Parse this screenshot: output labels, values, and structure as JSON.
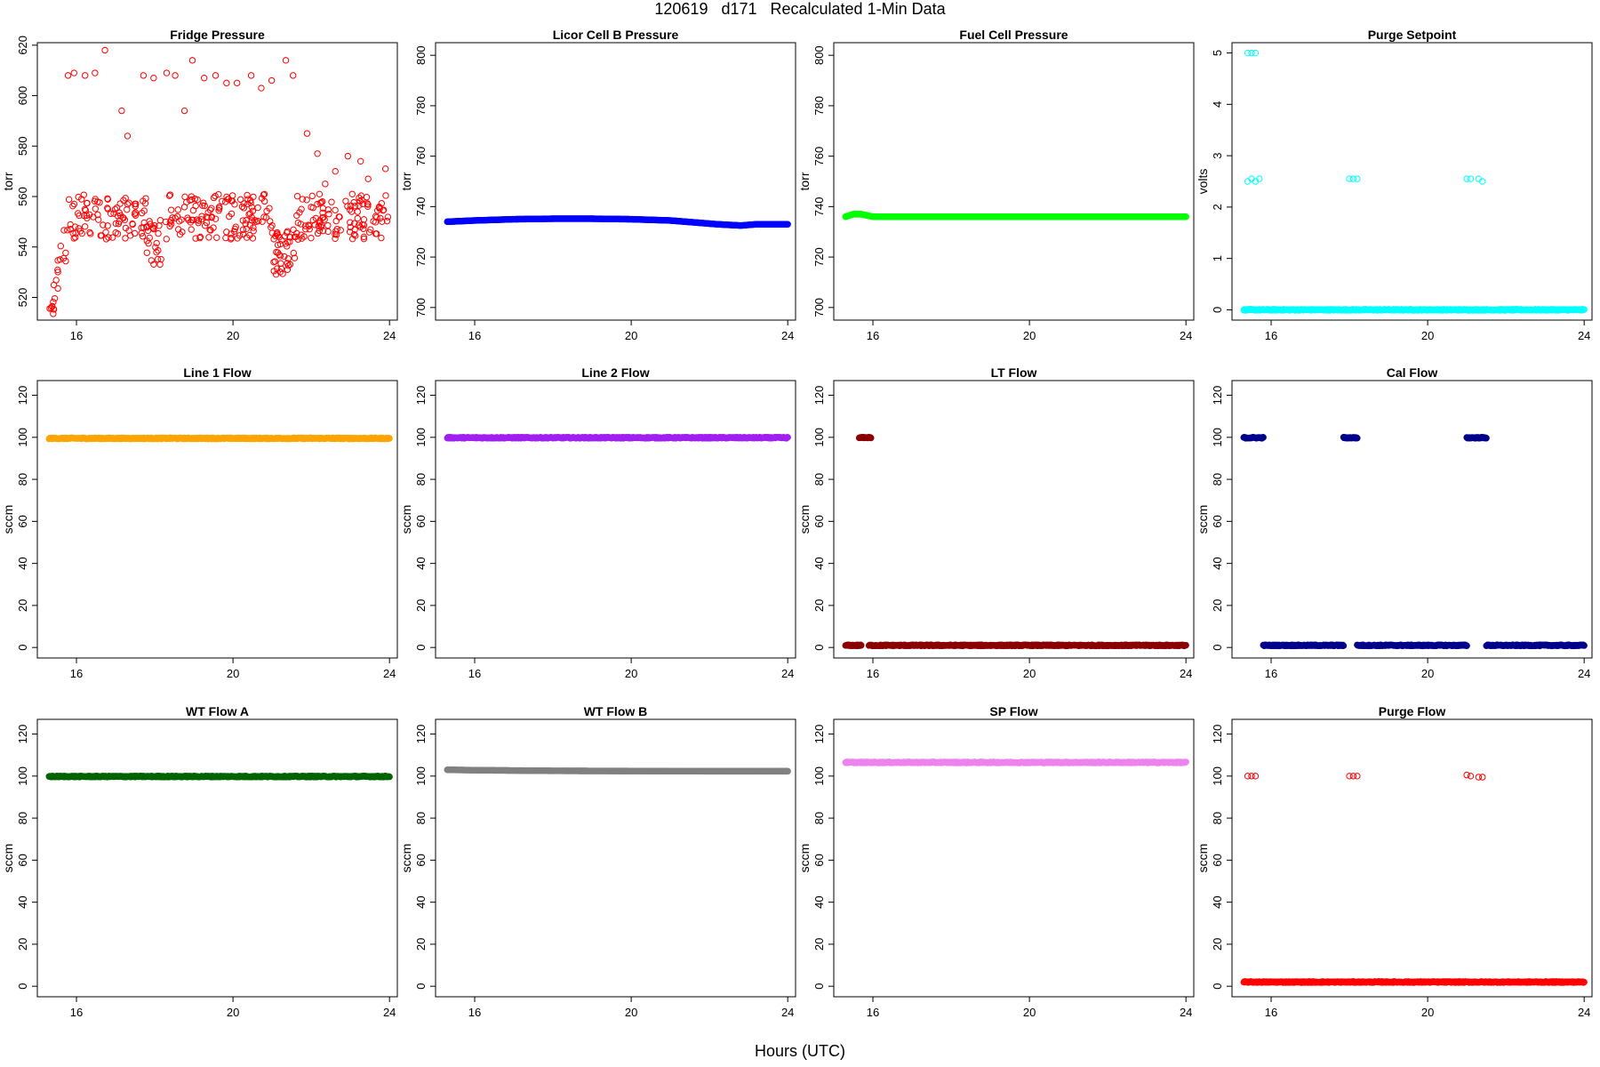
{
  "title": "120619   d171   Recalculated 1-Min Data",
  "xlabel": "Hours (UTC)",
  "chart_data": [
    {
      "type": "scatter",
      "title": "Fridge Pressure",
      "ylabel": "torr",
      "xlim": [
        15,
        24.2
      ],
      "ylim": [
        511,
        621
      ],
      "yticks": [
        520,
        540,
        560,
        580,
        600,
        620
      ],
      "xticks": [
        16,
        20,
        24
      ],
      "color": "#ff0000",
      "marker": "open",
      "series": [
        {
          "generator": "fridge",
          "x_range": [
            15.3,
            24
          ],
          "baseline": 552,
          "outlier_values": [
            608,
            609,
            608,
            609,
            618,
            594,
            584,
            608,
            607,
            609,
            608,
            594,
            614,
            607,
            608,
            605,
            605,
            608,
            603,
            606,
            614,
            608,
            585,
            577,
            565,
            570,
            576,
            574,
            567,
            571
          ]
        }
      ]
    },
    {
      "type": "scatter",
      "title": "Licor Cell B Pressure",
      "ylabel": "torr",
      "xlim": [
        15,
        24.2
      ],
      "ylim": [
        695,
        805
      ],
      "yticks": [
        700,
        720,
        740,
        760,
        780,
        800
      ],
      "xticks": [
        16,
        20,
        24
      ],
      "color": "#0000ff",
      "marker": "filled",
      "series": [
        {
          "x": [
            15.3,
            16,
            17,
            18,
            19,
            20,
            21,
            21.8,
            22.2,
            22.8,
            23.2,
            24
          ],
          "y": [
            734,
            734.5,
            735,
            735.2,
            735.2,
            735,
            734.5,
            733.5,
            733,
            732.5,
            733,
            733
          ]
        }
      ]
    },
    {
      "type": "scatter",
      "title": "Fuel Cell Pressure",
      "ylabel": "torr",
      "xlim": [
        15,
        24.2
      ],
      "ylim": [
        695,
        805
      ],
      "yticks": [
        700,
        720,
        740,
        760,
        780,
        800
      ],
      "xticks": [
        16,
        20,
        24
      ],
      "color": "#00ff00",
      "marker": "filled",
      "series": [
        {
          "x": [
            15.3,
            15.5,
            15.7,
            16,
            16.5,
            17,
            18,
            19,
            20,
            21,
            22,
            23,
            24
          ],
          "y": [
            736,
            737,
            737,
            736,
            736,
            736,
            736,
            736,
            736,
            736,
            736,
            736,
            736
          ]
        }
      ]
    },
    {
      "type": "scatter",
      "title": "Purge Setpoint",
      "ylabel": "volts",
      "xlim": [
        15,
        24.2
      ],
      "ylim": [
        -0.2,
        5.2
      ],
      "yticks": [
        0,
        1,
        2,
        3,
        4,
        5
      ],
      "xticks": [
        16,
        20,
        24
      ],
      "color": "#00ffff",
      "marker": "open",
      "series": [
        {
          "segments": [
            [
              15.3,
              24,
              0
            ]
          ],
          "points": [
            [
              15.4,
              5
            ],
            [
              15.5,
              5
            ],
            [
              15.6,
              5
            ],
            [
              15.4,
              2.5
            ],
            [
              15.5,
              2.55
            ],
            [
              15.6,
              2.5
            ],
            [
              15.7,
              2.55
            ],
            [
              18,
              2.55
            ],
            [
              18.1,
              2.55
            ],
            [
              18.2,
              2.55
            ],
            [
              21,
              2.55
            ],
            [
              21.1,
              2.55
            ],
            [
              21.3,
              2.55
            ],
            [
              21.4,
              2.5
            ]
          ]
        }
      ]
    },
    {
      "type": "scatter",
      "title": "Line 1 Flow",
      "ylabel": "sccm",
      "xlim": [
        15,
        24.2
      ],
      "ylim": [
        -5,
        127
      ],
      "yticks": [
        0,
        20,
        40,
        60,
        80,
        100,
        120
      ],
      "xticks": [
        16,
        20,
        24
      ],
      "color": "#ffa500",
      "marker": "filled",
      "series": [
        {
          "segments": [
            [
              15.3,
              24,
              99.5
            ]
          ]
        }
      ]
    },
    {
      "type": "scatter",
      "title": "Line 2 Flow",
      "ylabel": "sccm",
      "xlim": [
        15,
        24.2
      ],
      "ylim": [
        -5,
        127
      ],
      "yticks": [
        0,
        20,
        40,
        60,
        80,
        100,
        120
      ],
      "xticks": [
        16,
        20,
        24
      ],
      "color": "#a020f0",
      "marker": "filled",
      "series": [
        {
          "segments": [
            [
              15.3,
              24,
              99.8
            ]
          ]
        }
      ]
    },
    {
      "type": "scatter",
      "title": "LT Flow",
      "ylabel": "sccm",
      "xlim": [
        15,
        24.2
      ],
      "ylim": [
        -5,
        127
      ],
      "yticks": [
        0,
        20,
        40,
        60,
        80,
        100,
        120
      ],
      "xticks": [
        16,
        20,
        24
      ],
      "color": "#8b0000",
      "marker": "filled",
      "series": [
        {
          "segments": [
            [
              15.3,
              15.7,
              1
            ],
            [
              15.9,
              24,
              1
            ],
            [
              15.65,
              15.95,
              99.8
            ]
          ]
        }
      ]
    },
    {
      "type": "scatter",
      "title": "Cal Flow",
      "ylabel": "sccm",
      "xlim": [
        15,
        24.2
      ],
      "ylim": [
        -5,
        127
      ],
      "yticks": [
        0,
        20,
        40,
        60,
        80,
        100,
        120
      ],
      "xticks": [
        16,
        20,
        24
      ],
      "color": "#00008b",
      "marker": "filled",
      "series": [
        {
          "segments": [
            [
              15.3,
              15.8,
              99.8
            ],
            [
              15.8,
              17.85,
              1
            ],
            [
              17.85,
              18.2,
              99.8
            ],
            [
              18.2,
              21.0,
              1
            ],
            [
              21.0,
              21.5,
              99.8
            ],
            [
              21.5,
              24,
              1
            ]
          ]
        }
      ]
    },
    {
      "type": "scatter",
      "title": "WT Flow A",
      "ylabel": "sccm",
      "xlim": [
        15,
        24.2
      ],
      "ylim": [
        -5,
        127
      ],
      "yticks": [
        0,
        20,
        40,
        60,
        80,
        100,
        120
      ],
      "xticks": [
        16,
        20,
        24
      ],
      "color": "#006400",
      "marker": "filled",
      "series": [
        {
          "segments": [
            [
              15.3,
              24,
              99.8
            ]
          ]
        }
      ]
    },
    {
      "type": "scatter",
      "title": "WT Flow B",
      "ylabel": "sccm",
      "xlim": [
        15,
        24.2
      ],
      "ylim": [
        -5,
        127
      ],
      "yticks": [
        0,
        20,
        40,
        60,
        80,
        100,
        120
      ],
      "xticks": [
        16,
        20,
        24
      ],
      "color": "#808080",
      "marker": "filled",
      "series": [
        {
          "x": [
            15.3,
            16,
            18,
            20,
            22,
            24
          ],
          "y": [
            103,
            102.8,
            102.5,
            102.4,
            102.3,
            102.3
          ]
        }
      ]
    },
    {
      "type": "scatter",
      "title": "SP Flow",
      "ylabel": "sccm",
      "xlim": [
        15,
        24.2
      ],
      "ylim": [
        -5,
        127
      ],
      "yticks": [
        0,
        20,
        40,
        60,
        80,
        100,
        120
      ],
      "xticks": [
        16,
        20,
        24
      ],
      "color": "#ee82ee",
      "marker": "filled",
      "series": [
        {
          "segments": [
            [
              15.3,
              24,
              106.5
            ]
          ]
        }
      ]
    },
    {
      "type": "scatter",
      "title": "Purge Flow",
      "ylabel": "sccm",
      "xlim": [
        15,
        24.2
      ],
      "ylim": [
        -5,
        127
      ],
      "yticks": [
        0,
        20,
        40,
        60,
        80,
        100,
        120
      ],
      "xticks": [
        16,
        20,
        24
      ],
      "color": "#ff0000",
      "marker": "open",
      "series": [
        {
          "segments": [
            [
              15.3,
              24,
              2
            ]
          ],
          "points": [
            [
              15.4,
              100
            ],
            [
              15.5,
              100
            ],
            [
              15.6,
              100
            ],
            [
              18.0,
              100
            ],
            [
              18.1,
              100
            ],
            [
              18.2,
              100
            ],
            [
              21.0,
              100.5
            ],
            [
              21.1,
              100
            ],
            [
              21.3,
              99.5
            ],
            [
              21.4,
              99.5
            ]
          ]
        }
      ]
    }
  ]
}
